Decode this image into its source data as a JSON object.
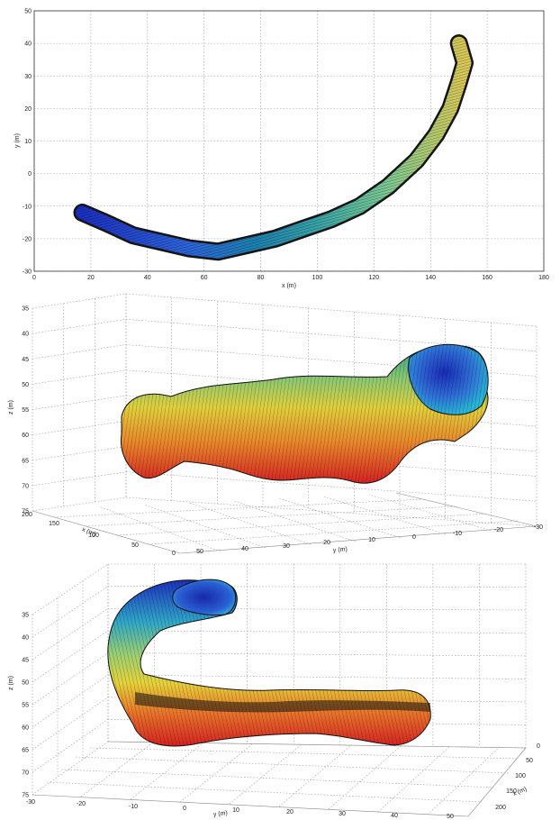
{
  "chart_data": [
    {
      "type": "scatter",
      "view": "top (x-y projection)",
      "xlabel": "x (m)",
      "ylabel": "y (m)",
      "xlim": [
        0,
        180
      ],
      "ylim": [
        -30,
        50
      ],
      "xticks": [
        "0",
        "20",
        "40",
        "60",
        "80",
        "100",
        "120",
        "140",
        "160",
        "180"
      ],
      "yticks": [
        "-30",
        "-20",
        "-10",
        "0",
        "10",
        "20",
        "30",
        "40",
        "50"
      ],
      "grid": true,
      "colormap": "jet (by z depth)",
      "centerline": {
        "x": [
          17,
          25,
          35,
          45,
          55,
          65,
          75,
          85,
          95,
          105,
          115,
          125,
          135,
          142,
          147,
          150,
          152,
          150
        ],
        "y": [
          -12,
          -15,
          -19,
          -21,
          -23,
          -24,
          -22,
          -20,
          -17,
          -14,
          -10,
          -4,
          4,
          12,
          20,
          28,
          34,
          40
        ]
      }
    },
    {
      "type": "surface",
      "view": "3-D perspective view 1",
      "xlabel": "x (m)",
      "ylabel": "y (m)",
      "zlabel": "z (m)",
      "zticks": [
        "35",
        "40",
        "45",
        "50",
        "55",
        "60",
        "65",
        "70",
        "75"
      ],
      "xticks": [
        "200",
        "150",
        "100",
        "50",
        "0"
      ],
      "yticks": [
        "50",
        "40",
        "30",
        "20",
        "10",
        "0",
        "-10",
        "-20",
        "-30"
      ],
      "grid": true,
      "colormap": "jet (by z depth)"
    },
    {
      "type": "surface",
      "view": "3-D perspective view 2",
      "xlabel": "x (m)",
      "ylabel": "y (m)",
      "zlabel": "z (m)",
      "zticks": [
        "35",
        "40",
        "45",
        "50",
        "55",
        "60",
        "65",
        "70",
        "75"
      ],
      "yticks": [
        "-30",
        "-20",
        "-10",
        "0",
        "10",
        "20",
        "30",
        "40",
        "50"
      ],
      "xticks": [
        "0",
        "50",
        "100",
        "150",
        "200"
      ],
      "grid": true,
      "colormap": "jet (by z depth)"
    }
  ]
}
